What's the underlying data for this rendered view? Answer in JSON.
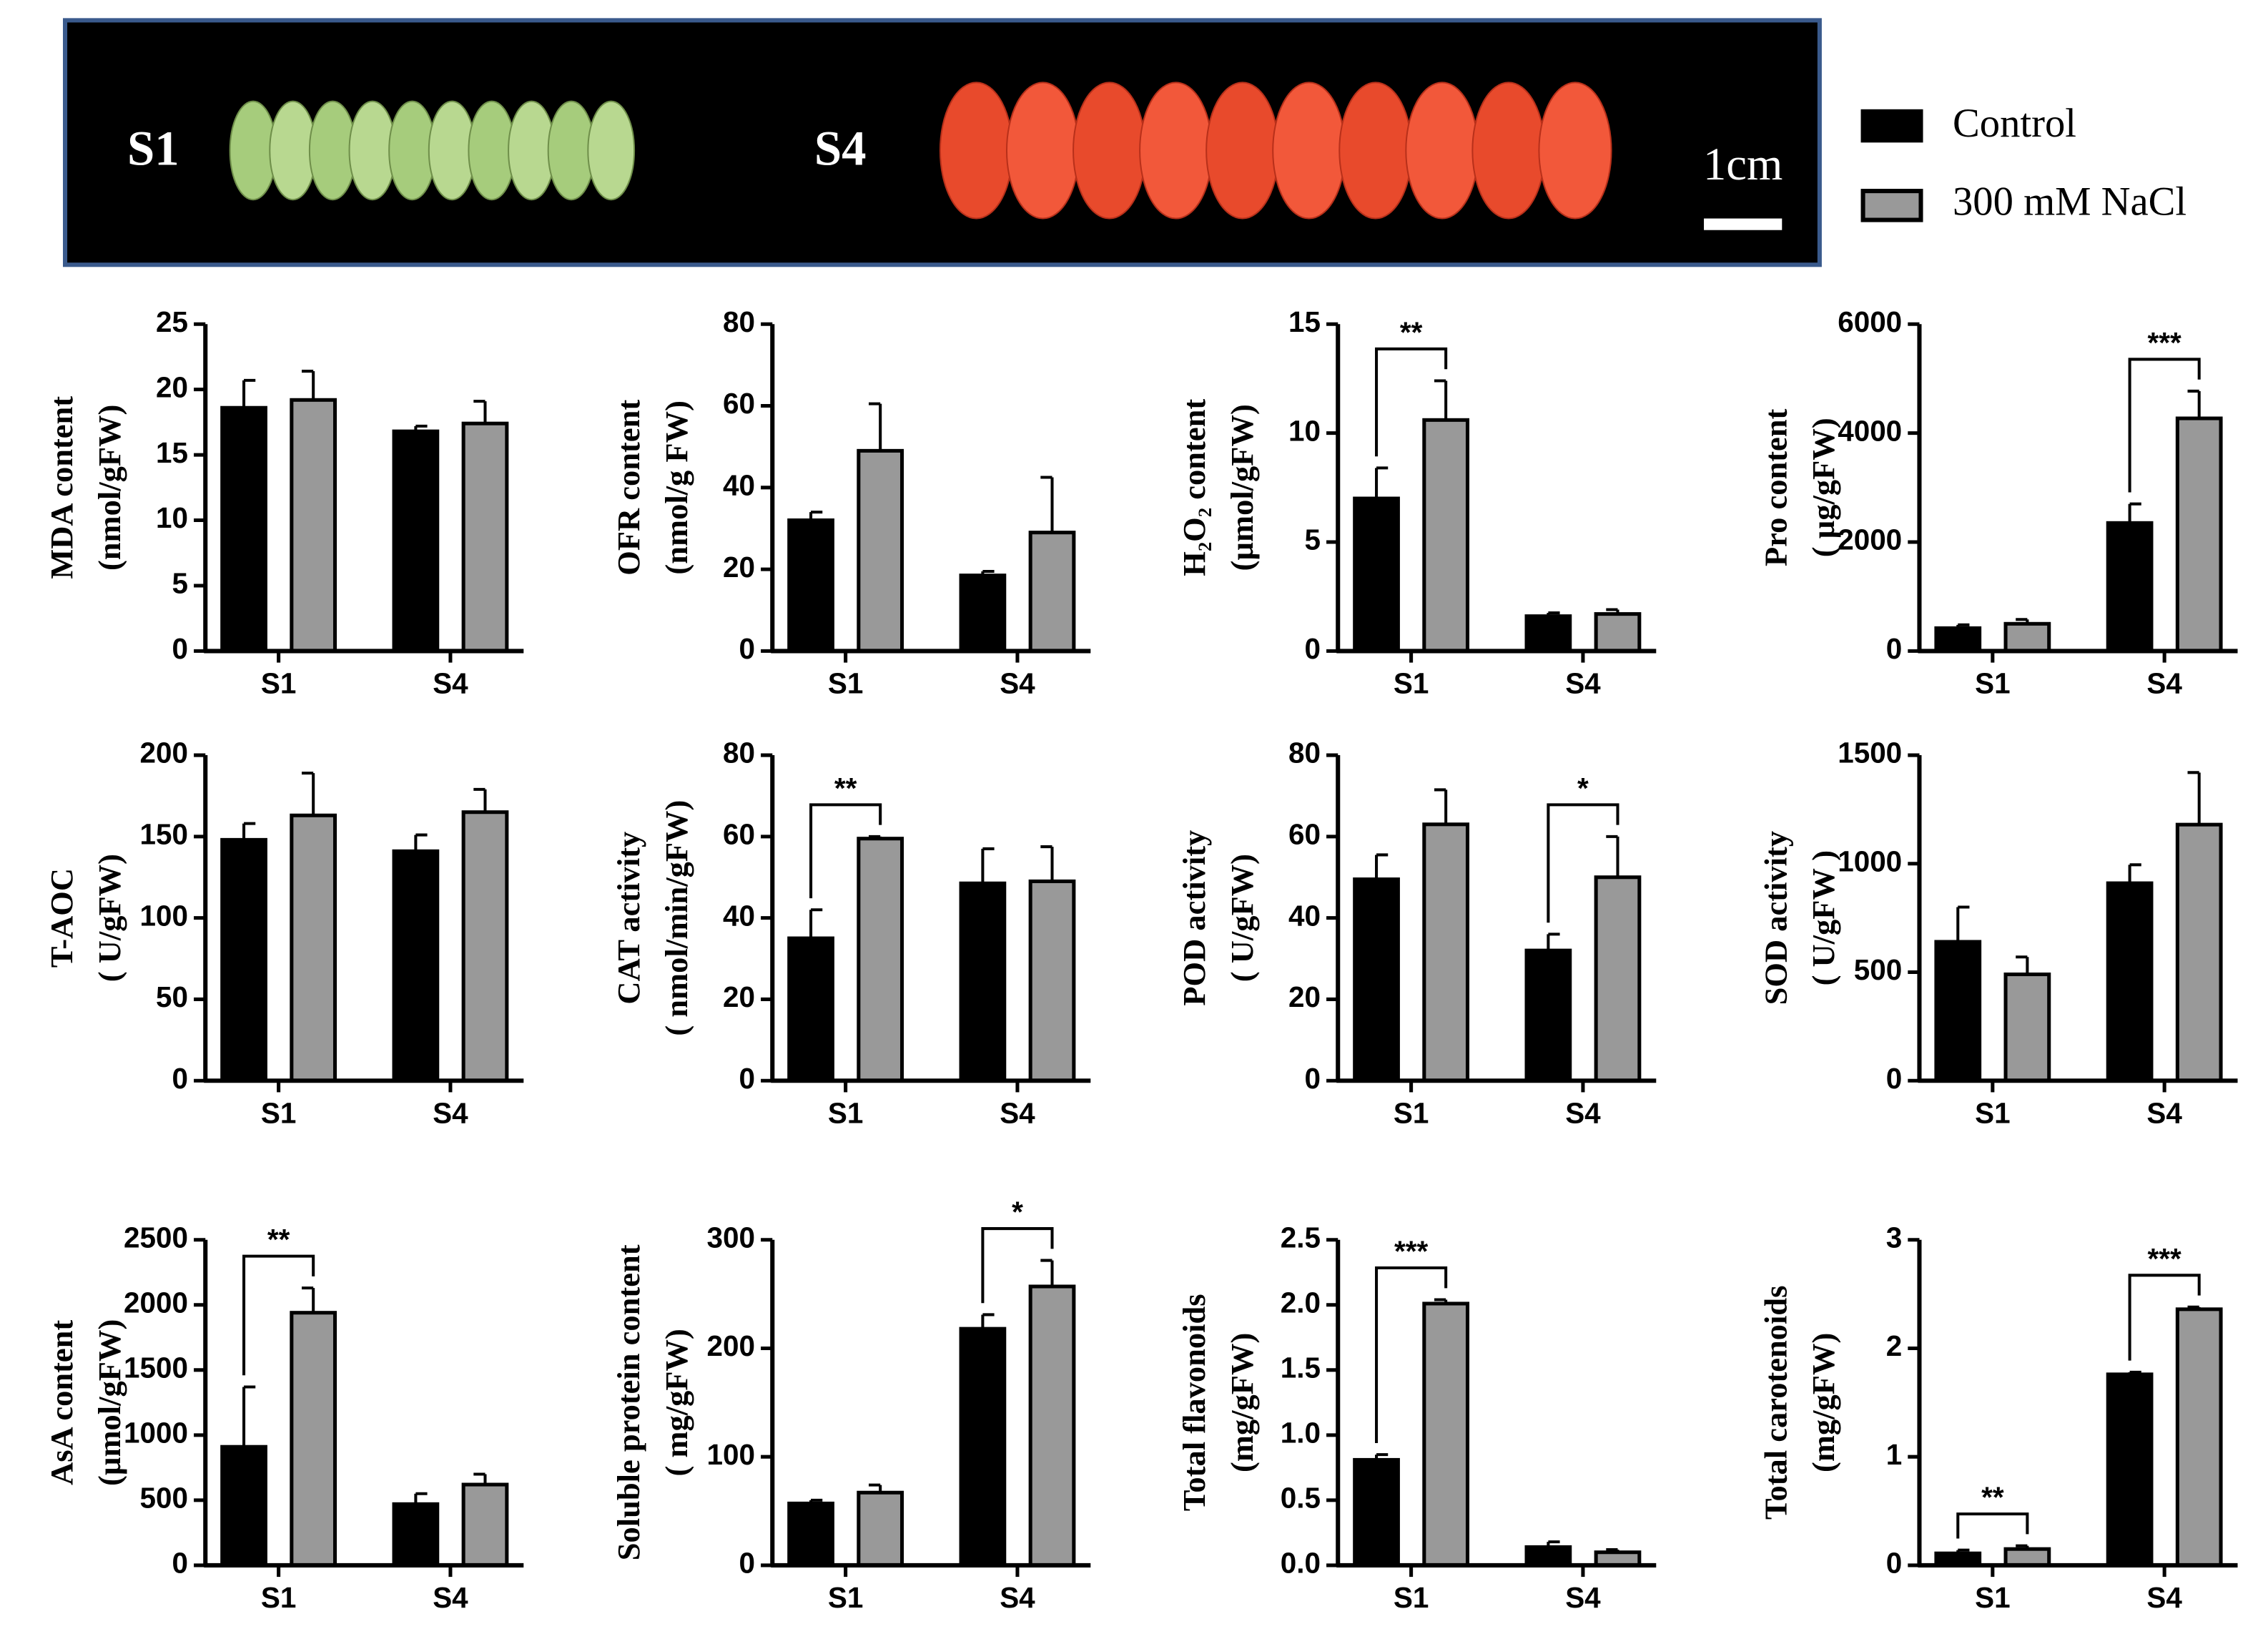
{
  "photo": {
    "labels": [
      "S1",
      "S4"
    ],
    "scale_label": "1cm"
  },
  "legend": [
    {
      "name": "Control",
      "color": "#000000"
    },
    {
      "name": "300 mM NaCl",
      "color": "#999999"
    }
  ],
  "chart_data": [
    {
      "type": "bar",
      "ylabel": [
        "MDA content",
        "(nmol/gFW)"
      ],
      "categories": [
        "S1",
        "S4"
      ],
      "ylim": [
        0,
        25
      ],
      "yticks": [
        0,
        5,
        10,
        15,
        20,
        25
      ],
      "series": [
        {
          "values": [
            18.6,
            16.8
          ],
          "errors": [
            2.1,
            0.4
          ]
        },
        {
          "values": [
            19.2,
            17.4
          ],
          "errors": [
            2.2,
            1.7
          ]
        }
      ],
      "annotations": []
    },
    {
      "type": "bar",
      "ylabel": [
        "OFR content",
        "(nmol/g FW)"
      ],
      "categories": [
        "S1",
        "S4"
      ],
      "ylim": [
        0,
        80
      ],
      "yticks": [
        0,
        20,
        40,
        60,
        80
      ],
      "series": [
        {
          "values": [
            32,
            18.5
          ],
          "errors": [
            2,
            1
          ]
        },
        {
          "values": [
            49,
            29
          ],
          "errors": [
            11.5,
            13.5
          ]
        }
      ],
      "annotations": []
    },
    {
      "type": "bar",
      "ylabel": [
        "H₂O₂ content",
        "(µmol/gFW)"
      ],
      "categories": [
        "S1",
        "S4"
      ],
      "ylim": [
        0,
        15
      ],
      "yticks": [
        0,
        5,
        10,
        15
      ],
      "series": [
        {
          "values": [
            7,
            1.6
          ],
          "errors": [
            1.4,
            0.15
          ]
        },
        {
          "values": [
            10.6,
            1.7
          ],
          "errors": [
            1.8,
            0.2
          ]
        }
      ],
      "annotations": [
        {
          "category": "S1",
          "label": "**"
        }
      ]
    },
    {
      "type": "bar",
      "ylabel": [
        "Pro content",
        "( µg/gFW)"
      ],
      "categories": [
        "S1",
        "S4"
      ],
      "ylim": [
        0,
        6000
      ],
      "yticks": [
        0,
        2000,
        4000,
        6000
      ],
      "series": [
        {
          "values": [
            420,
            2350
          ],
          "errors": [
            60,
            350
          ]
        },
        {
          "values": [
            500,
            4270
          ],
          "errors": [
            80,
            500
          ]
        }
      ],
      "annotations": [
        {
          "category": "S4",
          "label": "***"
        }
      ]
    },
    {
      "type": "bar",
      "ylabel": [
        "T-AOC",
        "( U/gFW)"
      ],
      "categories": [
        "S1",
        "S4"
      ],
      "ylim": [
        0,
        200
      ],
      "yticks": [
        0,
        50,
        100,
        150,
        200
      ],
      "series": [
        {
          "values": [
            148,
            141
          ],
          "errors": [
            10,
            10
          ]
        },
        {
          "values": [
            163,
            165
          ],
          "errors": [
            26,
            14
          ]
        }
      ],
      "annotations": []
    },
    {
      "type": "bar",
      "ylabel": [
        "CAT activity",
        "( nmol/min/gFW)"
      ],
      "categories": [
        "S1",
        "S4"
      ],
      "ylim": [
        0,
        80
      ],
      "yticks": [
        0,
        20,
        40,
        60,
        80
      ],
      "series": [
        {
          "values": [
            35,
            48.5
          ],
          "errors": [
            7,
            8.5
          ]
        },
        {
          "values": [
            59.5,
            49
          ],
          "errors": [
            0.5,
            8.5
          ]
        }
      ],
      "annotations": [
        {
          "category": "S1",
          "label": "**"
        }
      ]
    },
    {
      "type": "bar",
      "ylabel": [
        "POD activity",
        "( U/gFW)"
      ],
      "categories": [
        "S1",
        "S4"
      ],
      "ylim": [
        0,
        80
      ],
      "yticks": [
        0,
        20,
        40,
        60,
        80
      ],
      "series": [
        {
          "values": [
            49.5,
            32
          ],
          "errors": [
            6,
            4
          ]
        },
        {
          "values": [
            63,
            50
          ],
          "errors": [
            8.5,
            10
          ]
        }
      ],
      "annotations": [
        {
          "category": "S4",
          "label": "*"
        }
      ]
    },
    {
      "type": "bar",
      "ylabel": [
        "SOD activity",
        "( U/gFW )"
      ],
      "categories": [
        "S1",
        "S4"
      ],
      "ylim": [
        0,
        1500
      ],
      "yticks": [
        0,
        500,
        1000,
        1500
      ],
      "series": [
        {
          "values": [
            640,
            910
          ],
          "errors": [
            160,
            85
          ]
        },
        {
          "values": [
            490,
            1180
          ],
          "errors": [
            80,
            240
          ]
        }
      ],
      "annotations": []
    },
    {
      "type": "bar",
      "ylabel": [
        "AsA content",
        "(µmol/gFW)"
      ],
      "categories": [
        "S1",
        "S4"
      ],
      "ylim": [
        0,
        2500
      ],
      "yticks": [
        0,
        500,
        1000,
        1500,
        2000,
        2500
      ],
      "series": [
        {
          "values": [
            910,
            470
          ],
          "errors": [
            460,
            80
          ]
        },
        {
          "values": [
            1940,
            620
          ],
          "errors": [
            190,
            80
          ]
        }
      ],
      "annotations": [
        {
          "category": "S1",
          "label": "**"
        }
      ]
    },
    {
      "type": "bar",
      "ylabel": [
        "Soluble protein content",
        "( mg/gFW)"
      ],
      "categories": [
        "S1",
        "S4"
      ],
      "ylim": [
        0,
        300
      ],
      "yticks": [
        0,
        100,
        200,
        300
      ],
      "series": [
        {
          "values": [
            57,
            218
          ],
          "errors": [
            3,
            13
          ]
        },
        {
          "values": [
            67,
            257
          ],
          "errors": [
            7,
            24
          ]
        }
      ],
      "annotations": [
        {
          "category": "S4",
          "label": "*"
        }
      ]
    },
    {
      "type": "bar",
      "ylabel": [
        "Total flavonoids",
        "(mg/gFW)"
      ],
      "categories": [
        "S1",
        "S4"
      ],
      "ylim": [
        0,
        2.5
      ],
      "yticks": [
        {
          "value": 0,
          "label": "0.0"
        },
        0.5,
        {
          "value": 1,
          "label": "1.0"
        },
        1.5,
        {
          "value": 2,
          "label": "2.0"
        },
        2.5
      ],
      "series": [
        {
          "values": [
            0.81,
            0.14
          ],
          "errors": [
            0.04,
            0.04
          ]
        },
        {
          "values": [
            2.01,
            0.1
          ],
          "errors": [
            0.03,
            0.02
          ]
        }
      ],
      "annotations": [
        {
          "category": "S1",
          "label": "***"
        }
      ]
    },
    {
      "type": "bar",
      "ylabel": [
        "Total carotenoids",
        "(mg/gFW)"
      ],
      "categories": [
        "S1",
        "S4"
      ],
      "ylim": [
        0,
        3
      ],
      "yticks": [
        0,
        1,
        2,
        3
      ],
      "series": [
        {
          "values": [
            0.11,
            1.76
          ],
          "errors": [
            0.03,
            0.02
          ]
        },
        {
          "values": [
            0.15,
            2.36
          ],
          "errors": [
            0.03,
            0.02
          ]
        }
      ],
      "annotations": [
        {
          "category": "S1",
          "label": "**"
        },
        {
          "category": "S4",
          "label": "***"
        }
      ]
    }
  ]
}
